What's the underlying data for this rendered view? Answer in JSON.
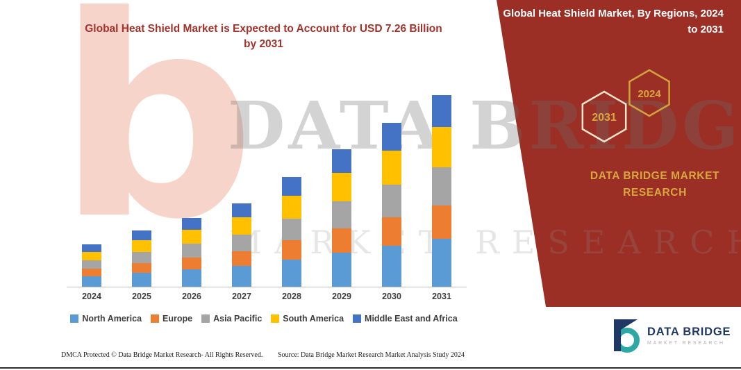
{
  "banner": {
    "text": "Global Heat Shield Market, By Regions, 2024 to 2031"
  },
  "title": "Global Heat Shield Market is Expected to Account for USD 7.26 Billion by 2031",
  "right_panel": {
    "hexagons": [
      {
        "label": "2031",
        "stroke": "#EFE3CC"
      },
      {
        "label": "2024",
        "stroke": "#D2A33C"
      }
    ],
    "brand_line1": "DATA BRIDGE MARKET",
    "brand_line2": "RESEARCH",
    "colors": {
      "maroon": "#9B2F26",
      "gold": "#D9A73F"
    }
  },
  "watermark": {
    "line1": "DATA BRIDGE",
    "line2": "MARKET RESEARCH",
    "logo_glyph": "b"
  },
  "footer": {
    "dmca": "DMCA Protected © Data Bridge Market Research-  All Rights Reserved.",
    "source": "Source: Data Bridge Market Research  Market Analysis Study 2024"
  },
  "logo": {
    "name": "DATA BRIDGE",
    "subtitle": "MARKET RESEARCH",
    "teal": "#2EA8A4",
    "navy": "#1F3864"
  },
  "chart_data": {
    "type": "bar",
    "subtype": "stacked",
    "title": "Global Heat Shield Market is Expected to Account for USD 7.26 Billion by 2031",
    "categories": [
      "2024",
      "2025",
      "2026",
      "2027",
      "2028",
      "2029",
      "2030",
      "2031"
    ],
    "series": [
      {
        "name": "North America",
        "color": "#5B9BD5",
        "values": [
          0.4,
          0.53,
          0.65,
          0.79,
          1.04,
          1.3,
          1.55,
          1.82
        ]
      },
      {
        "name": "Europe",
        "color": "#ED7D31",
        "values": [
          0.28,
          0.37,
          0.45,
          0.55,
          0.72,
          0.9,
          1.07,
          1.25
        ]
      },
      {
        "name": "Asia Pacific",
        "color": "#A5A5A5",
        "values": [
          0.32,
          0.43,
          0.52,
          0.63,
          0.83,
          1.04,
          1.24,
          1.45
        ]
      },
      {
        "name": "South America",
        "color": "#FFC000",
        "values": [
          0.33,
          0.44,
          0.54,
          0.66,
          0.87,
          1.09,
          1.3,
          1.52
        ]
      },
      {
        "name": "Middle East and Africa",
        "color": "#4472C4",
        "values": [
          0.27,
          0.36,
          0.44,
          0.53,
          0.7,
          0.88,
          1.05,
          1.22
        ]
      }
    ],
    "totals": [
      1.6,
      2.13,
      2.6,
      3.16,
      4.16,
      5.21,
      6.21,
      7.26
    ],
    "value_unit": "USD Billion (values estimated from bar heights; 2031 total = 7.26 per title)",
    "xlabel": "",
    "ylabel": "",
    "ylim": [
      0,
      7.5
    ],
    "grid": false,
    "legend_position": "bottom"
  }
}
